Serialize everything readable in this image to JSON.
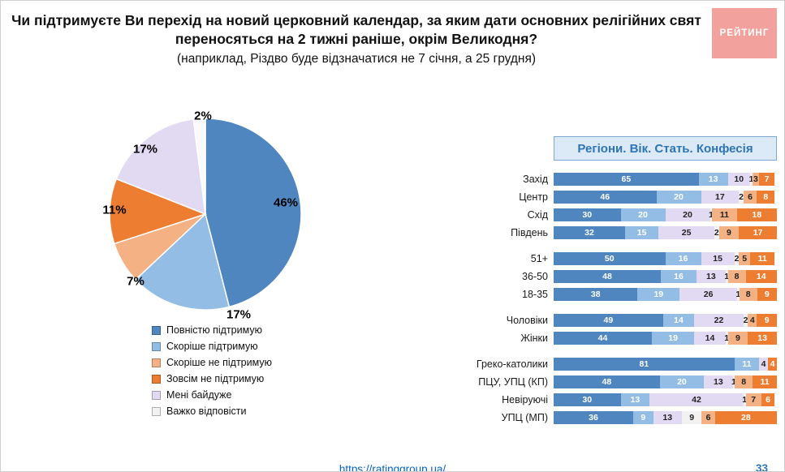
{
  "slide": {
    "title_line1": "Чи підтримуєте Ви перехід на новий церковний календар, за яким дати основних релігійних свят",
    "title_line2": "переносяться на 2 тижні раніше, окрім Великодня?",
    "subtitle": "(наприклад, Різдво буде відзначатися не 7 січня, а 25 грудня)",
    "logo_text": "РЕЙТИНГ",
    "footer_link": "https://ratinggroup.ua/",
    "page_number": "33"
  },
  "chart_data": [
    {
      "type": "pie",
      "unit": "%",
      "labels": [
        "Повністю підтримую",
        "Скоріше підтримую",
        "Скоріше не підтримую",
        "Зовсім не підтримую",
        "Мені байдуже",
        "Важко відповісти"
      ],
      "values": [
        46,
        17,
        7,
        11,
        17,
        2
      ],
      "colors": [
        "#4f86c0",
        "#93bde4",
        "#f4b183",
        "#ed7d31",
        "#e2d9f3",
        "#fafafa"
      ],
      "legend_position": "bottom-left"
    },
    {
      "type": "bar",
      "orientation": "horizontal-stacked",
      "title": "Регіони. Вік. Стать. Конфесія",
      "unit": "%",
      "xlim": [
        0,
        100
      ],
      "series": [
        "Повністю підтримую",
        "Скоріше підтримую",
        "Мені байдуже",
        "Важко відповісти",
        "Скоріше не підтримую",
        "Зовсім не підтримую"
      ],
      "series_colors": [
        "#4f86c0",
        "#93bde4",
        "#e2d9f3",
        "#f2f2f2",
        "#f4b183",
        "#ed7d31"
      ],
      "groups": [
        {
          "rows": [
            {
              "label": "Захід",
              "values": [
                65,
                13,
                10,
                1,
                3,
                7
              ]
            },
            {
              "label": "Центр",
              "values": [
                46,
                20,
                17,
                2,
                6,
                8
              ]
            },
            {
              "label": "Схід",
              "values": [
                30,
                20,
                20,
                1,
                11,
                18
              ]
            },
            {
              "label": "Південь",
              "values": [
                32,
                15,
                25,
                2,
                9,
                17
              ]
            }
          ]
        },
        {
          "rows": [
            {
              "label": "51+",
              "values": [
                50,
                16,
                15,
                2,
                5,
                11
              ]
            },
            {
              "label": "36-50",
              "values": [
                48,
                16,
                13,
                1,
                8,
                14
              ]
            },
            {
              "label": "18-35",
              "values": [
                38,
                19,
                26,
                1,
                8,
                9
              ]
            }
          ]
        },
        {
          "rows": [
            {
              "label": "Чоловіки",
              "values": [
                49,
                14,
                22,
                2,
                4,
                9
              ]
            },
            {
              "label": "Жінки",
              "values": [
                44,
                19,
                14,
                1,
                9,
                13
              ]
            }
          ]
        },
        {
          "rows": [
            {
              "label": "Греко-католики",
              "values": [
                81,
                11,
                4,
                0,
                0,
                4
              ]
            },
            {
              "label": "ПЦУ, УПЦ (КП)",
              "values": [
                48,
                20,
                13,
                1,
                8,
                11
              ]
            },
            {
              "label": "Невіруючі",
              "values": [
                30,
                13,
                42,
                1,
                7,
                6
              ]
            },
            {
              "label": "УПЦ (МП)",
              "values": [
                36,
                9,
                13,
                9,
                6,
                28
              ]
            }
          ]
        }
      ]
    }
  ]
}
